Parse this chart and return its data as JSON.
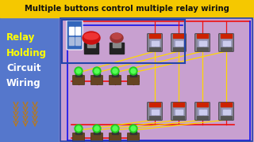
{
  "title": "Multiple buttons control multiple relay wiring",
  "title_color": "#FFFFFF",
  "title_bg": "#F5C800",
  "left_panel_bg": "#5577CC",
  "main_bg": "#C8A0D0",
  "left_text_lines": [
    "Relay",
    "Holding",
    "Circuit",
    "Wiring"
  ],
  "left_text_colors": [
    "#FFFF00",
    "#FFFF00",
    "#FFFFFF",
    "#FFFFFF"
  ],
  "wire_red": "#EE1111",
  "wire_blue": "#1111EE",
  "wire_yellow": "#FFD700",
  "button_green": "#22CC22",
  "button_red": "#CC1111",
  "breaker_blue": "#3366BB",
  "relay_gray": "#888899",
  "relay_body": "#9999BB",
  "relay_red_top": "#CC2200",
  "btn_body": "#664422",
  "border_blue": "#2244AA"
}
